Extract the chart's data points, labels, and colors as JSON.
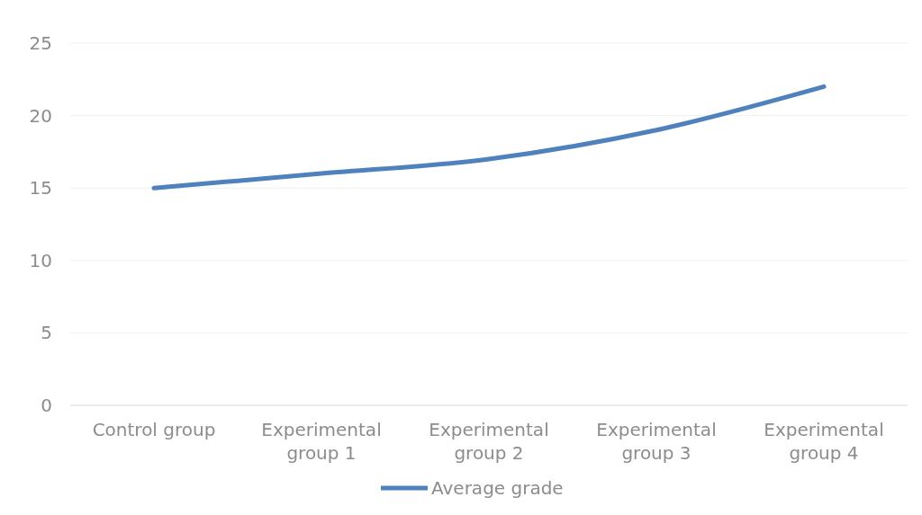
{
  "chart_data": {
    "type": "line",
    "categories": [
      "Control group",
      "Experimental group 1",
      "Experimental group 2",
      "Experimental group 3",
      "Experimental group 4"
    ],
    "series": [
      {
        "name": "Average grade",
        "color": "#4f81bd",
        "values": [
          15,
          16,
          17,
          19,
          22
        ]
      }
    ],
    "ylim": [
      0,
      25
    ],
    "yticks": [
      0,
      5,
      10,
      15,
      20,
      25
    ],
    "grid": "y",
    "legend": "bottom",
    "marker": "none",
    "line_style": "solid"
  }
}
